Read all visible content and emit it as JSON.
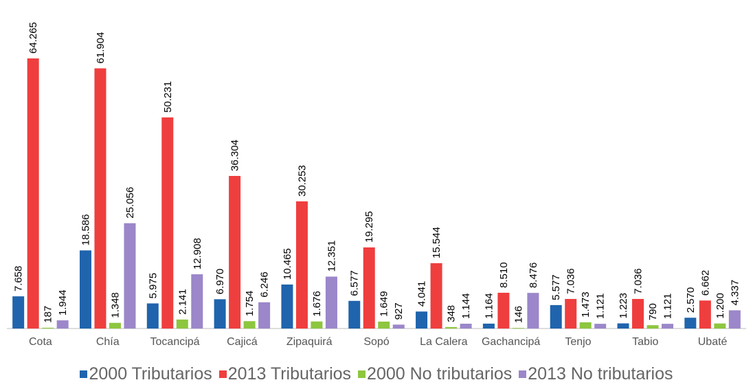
{
  "chart_data": {
    "type": "bar",
    "categories": [
      "Cota",
      "Chía",
      "Tocancipá",
      "Cajicá",
      "Zipaquirá",
      "Sopó",
      "La Calera",
      "Gachancipá",
      "Tenjo",
      "Tabio",
      "Ubaté"
    ],
    "series": [
      {
        "name": "2000 Tributarios",
        "color": "#1f64ad",
        "values": [
          7658,
          18586,
          5975,
          6970,
          10465,
          6577,
          4041,
          1164,
          5577,
          1223,
          2570
        ],
        "value_labels": [
          "7.658",
          "18.586",
          "5.975",
          "6.970",
          "10.465",
          "6.577",
          "4.041",
          "1.164",
          "5.577",
          "1.223",
          "2.570"
        ]
      },
      {
        "name": "2013 Tributarios",
        "color": "#ef3e3e",
        "values": [
          64265,
          61904,
          50231,
          36304,
          30253,
          19295,
          15544,
          8510,
          7036,
          7036,
          6662
        ],
        "value_labels": [
          "64.265",
          "61.904",
          "50.231",
          "36.304",
          "30.253",
          "19.295",
          "15.544",
          "8.510",
          "7.036",
          "7.036",
          "6.662"
        ]
      },
      {
        "name": "2000 No tributarios",
        "color": "#8dc63f",
        "values": [
          187,
          1348,
          2141,
          1754,
          1676,
          1649,
          348,
          146,
          1473,
          790,
          1200
        ],
        "value_labels": [
          "187",
          "1.348",
          "2.141",
          "1.754",
          "1.676",
          "1.649",
          "348",
          "146",
          "1.473",
          "790",
          "1.200"
        ]
      },
      {
        "name": "2013 No tributarios",
        "color": "#9b87c9",
        "values": [
          1944,
          25056,
          12908,
          6246,
          12351,
          927,
          1144,
          8476,
          1121,
          1121,
          4337
        ],
        "value_labels": [
          "1.944",
          "25.056",
          "12.908",
          "6.246",
          "12.351",
          "927",
          "1.144",
          "8.476",
          "1.121",
          "1.121",
          "4.337"
        ]
      }
    ],
    "legend": "bottom"
  }
}
